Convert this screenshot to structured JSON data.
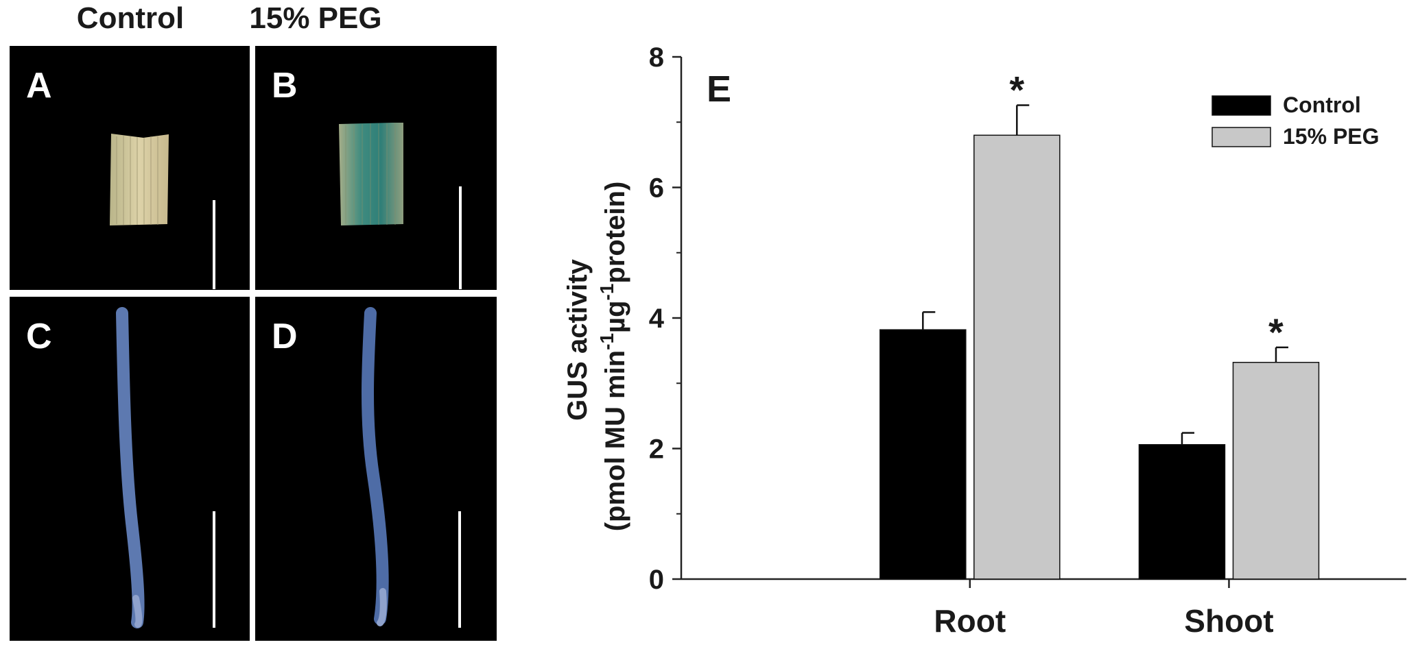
{
  "figure": {
    "column_headers": [
      "Control",
      "15% PEG"
    ],
    "panels": [
      {
        "letter": "A",
        "content": "leaf-segment"
      },
      {
        "letter": "B",
        "content": "leaf-segment"
      },
      {
        "letter": "C",
        "content": "root"
      },
      {
        "letter": "D",
        "content": "root"
      }
    ],
    "colors": {
      "panel_background": "#000000",
      "leaf_control": "#cfc39a",
      "leaf_peg": "#4f8f82",
      "root_stain": "#5d79b0",
      "scale_bar": "#ffffff"
    }
  },
  "chart_data": {
    "type": "bar",
    "panel_letter": "E",
    "categories": [
      "Root",
      "Shoot"
    ],
    "series": [
      {
        "name": "Control",
        "color": "#000000",
        "values": [
          3.82,
          2.06
        ],
        "errors": [
          0.27,
          0.18
        ],
        "significance": [
          "",
          ""
        ]
      },
      {
        "name": "15% PEG",
        "color": "#c8c8c8",
        "values": [
          6.8,
          3.32
        ],
        "errors": [
          0.46,
          0.23
        ],
        "significance": [
          "*",
          "*"
        ]
      }
    ],
    "ylabel_line1": "GUS activity",
    "ylabel_line2_parts": [
      "(pmol MU min",
      "-1",
      "µg",
      "-1",
      "protein)"
    ],
    "ylim": [
      0,
      8
    ],
    "yticks": [
      "0",
      "2",
      "4",
      "6",
      "8"
    ],
    "grid": false,
    "legend_position": "top-right"
  }
}
